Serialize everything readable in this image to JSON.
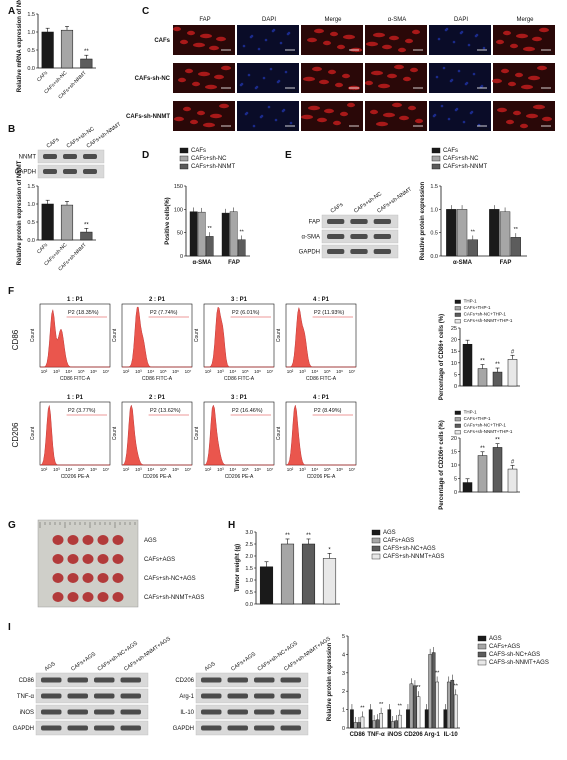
{
  "panels": {
    "A": {
      "label": "A",
      "ylabel": "Relative mRNA expression of NNMT",
      "categories": [
        "CAFs",
        "CAFs+sh-NC",
        "CAFs+sh-NNMT"
      ],
      "ticks": [
        "0.0",
        "0.5",
        "1.0",
        "1.5"
      ],
      "sig": "**"
    },
    "B": {
      "label": "B",
      "blot_rows": [
        "NNMT",
        "GAPDH"
      ],
      "categories": [
        "CAFs",
        "CAFs+sh-NC",
        "CAFs+sh-NNMT"
      ],
      "ylabel": "Relative protein expression of NNMT",
      "ticks": [
        "0.0",
        "0.5",
        "1.0",
        "1.5"
      ],
      "sig": "**"
    },
    "C": {
      "label": "C",
      "columns": [
        "FAP",
        "DAPI",
        "Merge",
        "α-SMA",
        "DAPI",
        "Merge"
      ],
      "rows": [
        "CAFs",
        "CAFs-sh-NC",
        "CAFs-sh-NNMT"
      ],
      "scale": "50μm"
    },
    "D": {
      "label": "D",
      "legend": [
        "CAFs",
        "CAFs+sh-NC",
        "CAFs+sh-NNMT"
      ],
      "ylabel": "Positive cells(%)",
      "groups": [
        "α-SMA",
        "FAP"
      ],
      "ticks": [
        "0",
        "50",
        "100",
        "150"
      ],
      "sig": "**"
    },
    "E": {
      "label": "E",
      "blot_lanes": [
        "CAFs",
        "CAFs+sh-NC",
        "CAFs+sh-NNMT"
      ],
      "blot_rows": [
        "FAP",
        "α-SMA",
        "GAPDH"
      ],
      "legend": [
        "CAFs",
        "CAFs+sh-NC",
        "CAFs+sh-NNMT"
      ],
      "ylabel": "Relative protein expression",
      "groups": [
        "α-SMA",
        "FAP"
      ],
      "ticks": [
        "0.0",
        "0.5",
        "1.0",
        "1.5"
      ],
      "sig": "**"
    },
    "F": {
      "label": "F",
      "row1_label": "CD86",
      "row2_label": "CD206",
      "row1": {
        "titles": [
          "1 : P1",
          "2 : P1",
          "3 : P1",
          "4 : P1"
        ],
        "gates": [
          "P2 (18.35%)",
          "P2 (7.74%)",
          "P2 (6.01%)",
          "P2 (11.93%)"
        ],
        "xlabel": "CD86 FITC-A"
      },
      "row2": {
        "titles": [
          "1 : P1",
          "2 : P1",
          "3 : P1",
          "4 : P1"
        ],
        "gates": [
          "P2 (3.77%)",
          "P2 (13.62%)",
          "P2 (16.46%)",
          "P2 (8.49%)"
        ],
        "xlabel": "CD206 PE-A"
      },
      "ylabel": "Count",
      "xticks": [
        "10²",
        "10³",
        "10⁴",
        "10⁵",
        "10⁶",
        "10⁷"
      ],
      "legend": [
        "THP-1",
        "CAFs+THP-1",
        "CAFs+sh-NC+THP-1",
        "CAFs+sh-NNMT+THP-1"
      ],
      "bar1_ylabel": "Percentage of CD86+ cells (%)",
      "bar2_ylabel": "Percentage of CD206+ cells (%)",
      "bar1_ticks": [
        "0",
        "5",
        "10",
        "15",
        "20",
        "25"
      ],
      "bar2_ticks": [
        "0",
        "5",
        "10",
        "15",
        "20"
      ]
    },
    "G": {
      "label": "G",
      "rows": [
        "AGS",
        "CAFs+AGS",
        "CAFs+sh-NC+AGS",
        "CAFs+sh-NNMT+AGS"
      ]
    },
    "H": {
      "label": "H",
      "ylabel": "Tumor weight (g)",
      "ticks": [
        "0.0",
        "0.5",
        "1.0",
        "1.5",
        "2.0",
        "2.5",
        "3.0"
      ],
      "legend": [
        "AGS",
        "CAFs+AGS",
        "CAFS+sh-NC+AGS",
        "CAFS+sh-NNMT+AGS"
      ],
      "sig": [
        "",
        "**",
        "**",
        "*"
      ]
    },
    "I": {
      "label": "I",
      "blot_lanes": [
        "AGS",
        "CAFs+AGS",
        "CAFs+sh-NC+AGS",
        "CAFs+sh-NNMT+AGS"
      ],
      "blot1_rows": [
        "CD86",
        "TNF-α",
        "iNOS",
        "GAPDH"
      ],
      "blot2_rows": [
        "CD206",
        "Arg-1",
        "IL-10",
        "GAPDH"
      ],
      "ylabel": "Relative protein expression",
      "ticks": [
        "0",
        "1",
        "2",
        "3",
        "4",
        "5"
      ],
      "legend": [
        "AGS",
        "CAFs+AGS",
        "CAFS-sh-NC+AGS",
        "CAFS-sh-NNMT+AGS"
      ],
      "groups": [
        "CD86",
        "TNF-α",
        "iNOS",
        "CD206",
        "Arg-1",
        "IL-10"
      ]
    }
  },
  "colors": {
    "c1": "#1a1a1a",
    "c2": "#a6a6a6",
    "c3": "#5c5c5c",
    "c4": "#e8e8e8",
    "flow": "#e8443a",
    "fluor": "#c81e1e",
    "dapi": "#1b2a8a"
  },
  "chart_data": [
    {
      "type": "bar",
      "categories": [
        "CAFs",
        "CAFs+sh-NC",
        "CAFs+sh-NNMT"
      ],
      "values": [
        1.0,
        1.05,
        0.25
      ],
      "ylabel": "Relative mRNA expression of NNMT",
      "ylim": [
        0,
        1.5
      ]
    },
    {
      "type": "bar",
      "categories": [
        "CAFs",
        "CAFs+sh-NC",
        "CAFs+sh-NNMT"
      ],
      "values": [
        1.0,
        0.97,
        0.22
      ],
      "ylabel": "Relative protein expression of NNMT",
      "ylim": [
        0,
        1.5
      ]
    },
    {
      "type": "bar",
      "categories": [
        "α-SMA",
        "FAP"
      ],
      "series": [
        {
          "name": "CAFs",
          "values": [
            95,
            92
          ]
        },
        {
          "name": "CAFs+sh-NC",
          "values": [
            94,
            95
          ]
        },
        {
          "name": "CAFs+sh-NNMT",
          "values": [
            42,
            35
          ]
        }
      ],
      "ylabel": "Positive cells(%)",
      "ylim": [
        0,
        150
      ]
    },
    {
      "type": "bar",
      "categories": [
        "α-SMA",
        "FAP"
      ],
      "series": [
        {
          "name": "CAFs",
          "values": [
            1.0,
            1.0
          ]
        },
        {
          "name": "CAFs+sh-NC",
          "values": [
            1.0,
            0.95
          ]
        },
        {
          "name": "CAFs+sh-NNMT",
          "values": [
            0.35,
            0.4
          ]
        }
      ],
      "ylabel": "Relative protein expression",
      "ylim": [
        0,
        1.5
      ]
    },
    {
      "type": "bar",
      "categories": [
        "THP-1",
        "CAFs+THP-1",
        "CAFs+sh-NC+THP-1",
        "CAFs+sh-NNMT+THP-1"
      ],
      "values": [
        18,
        7.5,
        6,
        11.5
      ],
      "ylabel": "Percentage of CD86+ cells (%)",
      "ylim": [
        0,
        25
      ]
    },
    {
      "type": "bar",
      "categories": [
        "THP-1",
        "CAFs+THP-1",
        "CAFs+sh-NC+THP-1",
        "CAFs+sh-NNMT+THP-1"
      ],
      "values": [
        3.5,
        13.5,
        16.5,
        8.5
      ],
      "ylabel": "Percentage of CD206+ cells (%)",
      "ylim": [
        0,
        20
      ]
    },
    {
      "type": "bar",
      "categories": [
        "AGS",
        "CAFs+AGS",
        "CAFS+sh-NC+AGS",
        "CAFS+sh-NNMT+AGS"
      ],
      "values": [
        1.55,
        2.5,
        2.5,
        1.9
      ],
      "ylabel": "Tumor weight (g)",
      "ylim": [
        0,
        3.0
      ]
    },
    {
      "type": "bar",
      "categories": [
        "CD86",
        "TNF-α",
        "iNOS",
        "CD206",
        "Arg-1",
        "IL-10"
      ],
      "series": [
        {
          "name": "AGS",
          "values": [
            1.0,
            1.0,
            1.0,
            1.0,
            1.0,
            1.0
          ]
        },
        {
          "name": "CAFs+AGS",
          "values": [
            0.3,
            0.4,
            0.35,
            2.4,
            4.0,
            2.5
          ]
        },
        {
          "name": "CAFS-sh-NC+AGS",
          "values": [
            0.3,
            0.45,
            0.4,
            2.3,
            4.1,
            2.6
          ]
        },
        {
          "name": "CAFS-sh-NNMT+AGS",
          "values": [
            0.6,
            0.8,
            0.7,
            1.7,
            2.5,
            1.8
          ]
        }
      ],
      "ylabel": "Relative protein expression",
      "ylim": [
        0,
        5
      ]
    }
  ]
}
